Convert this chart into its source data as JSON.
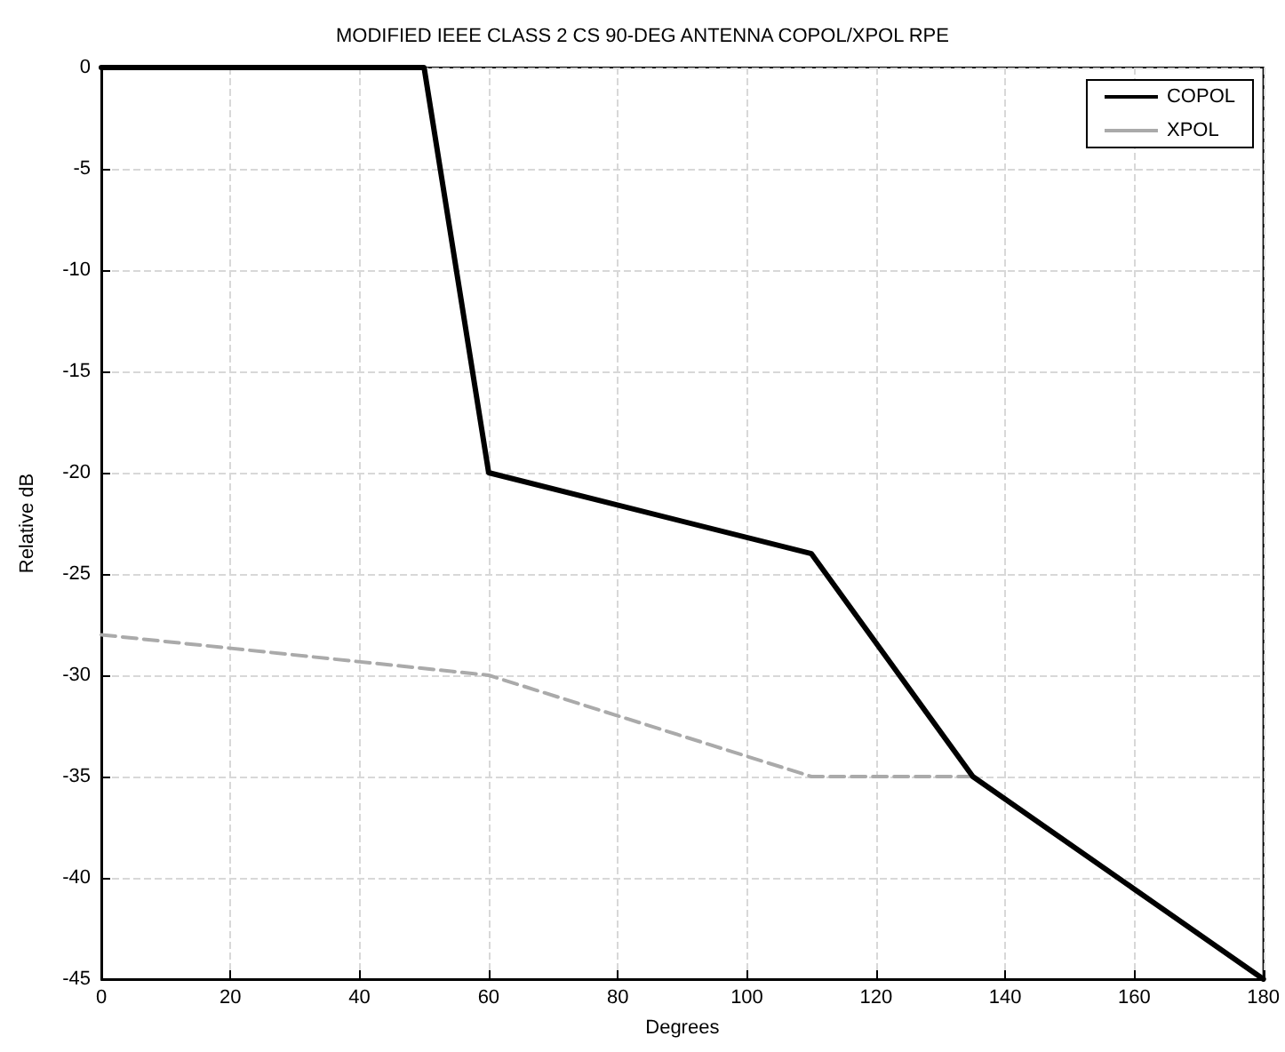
{
  "chart_data": {
    "type": "line",
    "title": "MODIFIED IEEE CLASS 2 CS 90-DEG ANTENNA COPOL/XPOL RPE",
    "xlabel": "Degrees",
    "ylabel": "Relative dB",
    "xlim": [
      0,
      180
    ],
    "xticks": [
      0,
      20,
      40,
      60,
      80,
      100,
      120,
      140,
      160,
      180
    ],
    "ylim": [
      -45,
      0
    ],
    "yticks": [
      -45,
      -40,
      -35,
      -30,
      -25,
      -20,
      -15,
      -10,
      -5,
      0
    ],
    "grid": true,
    "legend": "top right",
    "marker": "none",
    "series": [
      {
        "name": "COPOL",
        "color": "#000000",
        "line_style": "solid",
        "x": [
          0,
          50,
          60,
          110,
          135,
          180
        ],
        "values": [
          0,
          0,
          -20,
          -24,
          -35,
          -45
        ]
      },
      {
        "name": "XPOL",
        "color": "#aaaaaa",
        "line_style": "dashed",
        "x": [
          0,
          60,
          110,
          135,
          180
        ],
        "values": [
          -28,
          -30,
          -35,
          -35,
          -45
        ]
      }
    ]
  }
}
